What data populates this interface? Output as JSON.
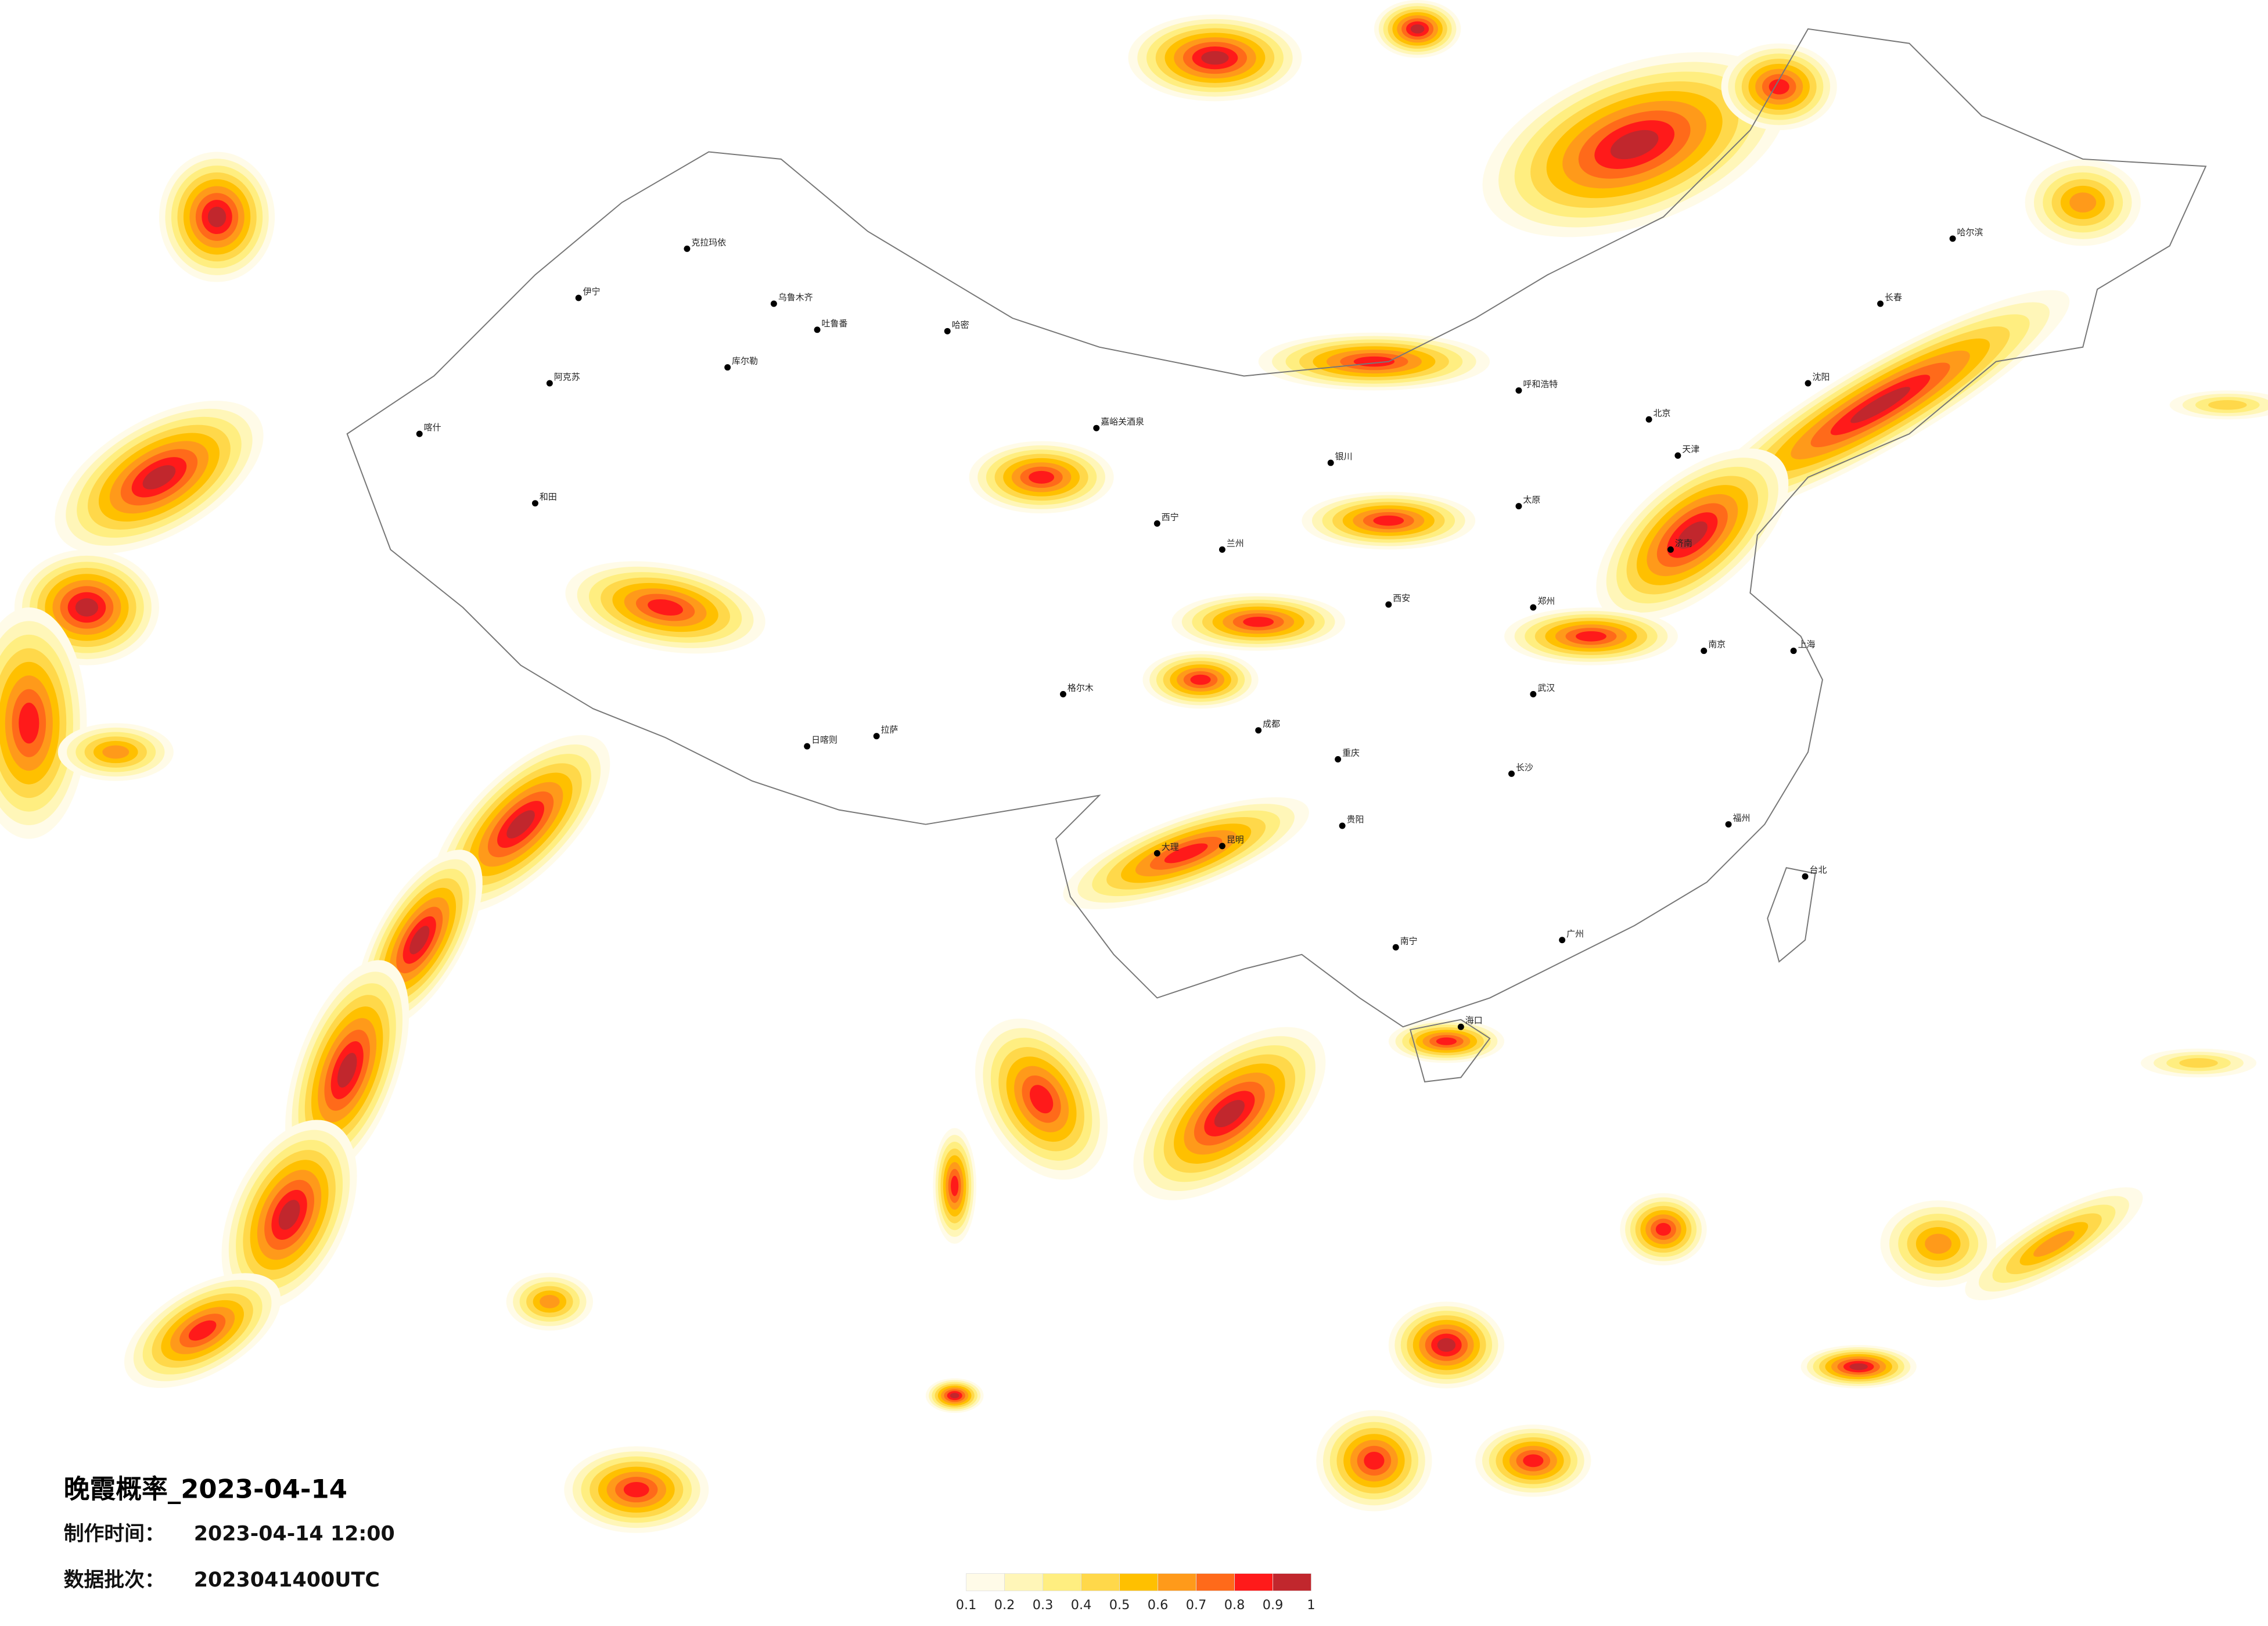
{
  "title": "晚霞概率_2023-04-14",
  "made_label": "制作时间：",
  "made_value": "2023-04-14 12:00",
  "batch_label": "数据批次：",
  "batch_value": "2023041400UTC",
  "legend": {
    "colors": [
      "#fffbe8",
      "#fff6b8",
      "#ffee80",
      "#ffd84a",
      "#ffc000",
      "#ff9a1a",
      "#ff6a1a",
      "#ff1a1a",
      "#c1272d"
    ],
    "ticks": [
      0.1,
      0.2,
      0.3,
      0.4,
      0.5,
      0.6,
      0.7,
      0.8,
      0.9,
      1
    ]
  },
  "cities": [
    {
      "name": "克拉玛依"
    },
    {
      "name": "乌鲁木齐"
    },
    {
      "name": "吐鲁番"
    },
    {
      "name": "哈密"
    },
    {
      "name": "伊宁"
    },
    {
      "name": "阿克苏"
    },
    {
      "name": "喀什"
    },
    {
      "name": "和田"
    },
    {
      "name": "库尔勒"
    },
    {
      "name": "嘉峪关酒泉"
    },
    {
      "name": "西宁"
    },
    {
      "name": "兰州"
    },
    {
      "name": "拉萨"
    },
    {
      "name": "日喀则"
    },
    {
      "name": "格尔木"
    },
    {
      "name": "成都"
    },
    {
      "name": "重庆"
    },
    {
      "name": "贵阳"
    },
    {
      "name": "昆明"
    },
    {
      "name": "南宁"
    },
    {
      "name": "广州"
    },
    {
      "name": "福州"
    },
    {
      "name": "台北"
    },
    {
      "name": "上海"
    },
    {
      "name": "南京"
    },
    {
      "name": "武汉"
    },
    {
      "name": "长沙"
    },
    {
      "name": "西安"
    },
    {
      "name": "郑州"
    },
    {
      "name": "北京"
    },
    {
      "name": "天津"
    },
    {
      "name": "济南"
    },
    {
      "name": "呼和浩特"
    },
    {
      "name": "沈阳"
    },
    {
      "name": "长春"
    },
    {
      "name": "哈尔滨"
    },
    {
      "name": "海口"
    },
    {
      "name": "太原"
    },
    {
      "name": "银川"
    },
    {
      "name": "大理"
    }
  ]
}
